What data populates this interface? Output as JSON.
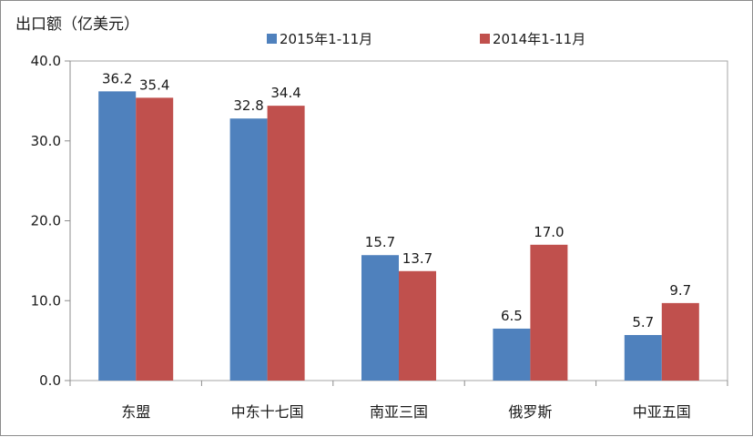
{
  "chart_data": {
    "type": "bar",
    "ylabel": "出口额（亿美元）",
    "categories": [
      "东盟",
      "中东十七国",
      "南亚三国",
      "俄罗斯",
      "中亚五国"
    ],
    "series": [
      {
        "name": "2015年1-11月",
        "color": "#4f81bd",
        "values": [
          36.2,
          32.8,
          15.7,
          6.5,
          5.7
        ]
      },
      {
        "name": "2014年1-11月",
        "color": "#c0504d",
        "values": [
          35.4,
          34.4,
          13.7,
          17.0,
          9.7
        ]
      }
    ],
    "ylim": [
      0,
      40
    ],
    "yticks": [
      "0.0",
      "10.0",
      "20.0",
      "30.0",
      "40.0"
    ],
    "legend": "top-center",
    "grid": false
  }
}
